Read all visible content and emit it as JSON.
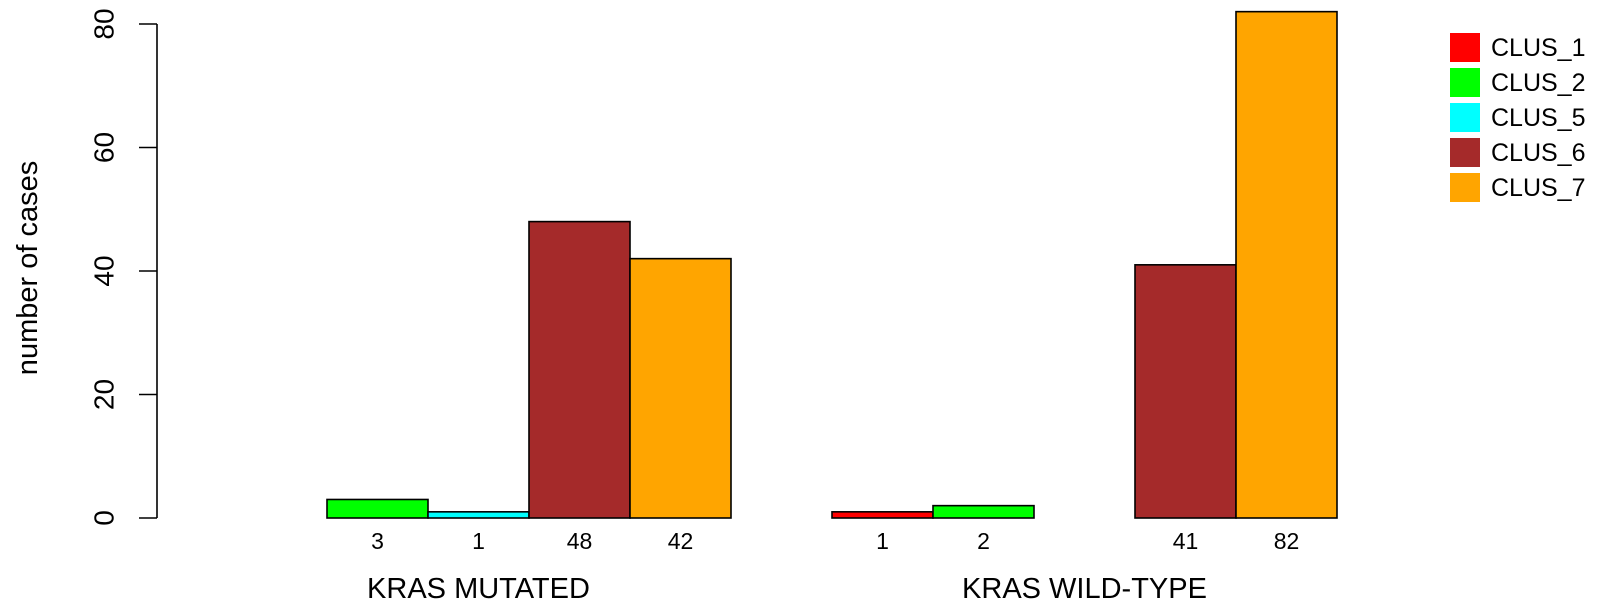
{
  "chart_data": {
    "type": "bar",
    "title": "",
    "xlabel": "",
    "ylabel": "number of cases",
    "ylim": [
      0,
      80
    ],
    "yticks": [
      0,
      20,
      40,
      60,
      80
    ],
    "grid": false,
    "legend_position": "top-right",
    "categories": [
      "KRAS MUTATED",
      "KRAS WILD-TYPE"
    ],
    "series": [
      {
        "name": "CLUS_1",
        "color": "#FF0000",
        "values": [
          0,
          1
        ]
      },
      {
        "name": "CLUS_2",
        "color": "#00FF00",
        "values": [
          3,
          2
        ]
      },
      {
        "name": "CLUS_5",
        "color": "#00FFFF",
        "values": [
          1,
          0
        ]
      },
      {
        "name": "CLUS_6",
        "color": "#A52A2A",
        "values": [
          48,
          41
        ]
      },
      {
        "name": "CLUS_7",
        "color": "#FFA500",
        "values": [
          42,
          82
        ]
      }
    ]
  }
}
